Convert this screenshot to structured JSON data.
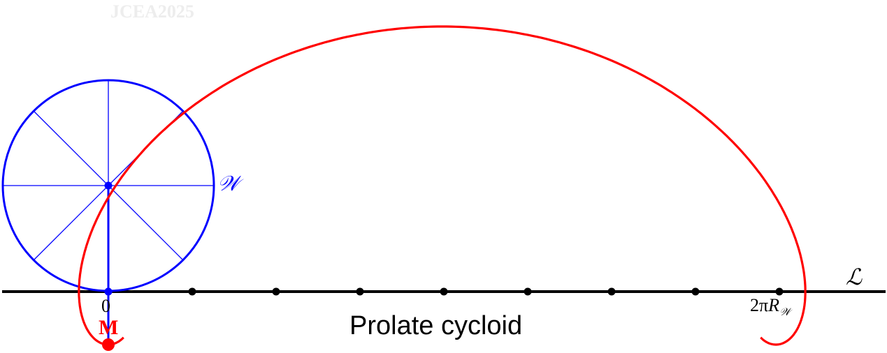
{
  "watermark": "JCEA2025",
  "caption": "Prolate cycloid",
  "labels": {
    "origin": "0",
    "point": "M",
    "wheel": "𝒲",
    "line": "ℒ",
    "period_prefix": "2π",
    "period_var": "R",
    "period_sub": "𝒲"
  },
  "colors": {
    "wheel": "#0000ff",
    "curve": "#ff0000",
    "line": "#000000"
  },
  "diagram": {
    "tick_count": 9
  }
}
